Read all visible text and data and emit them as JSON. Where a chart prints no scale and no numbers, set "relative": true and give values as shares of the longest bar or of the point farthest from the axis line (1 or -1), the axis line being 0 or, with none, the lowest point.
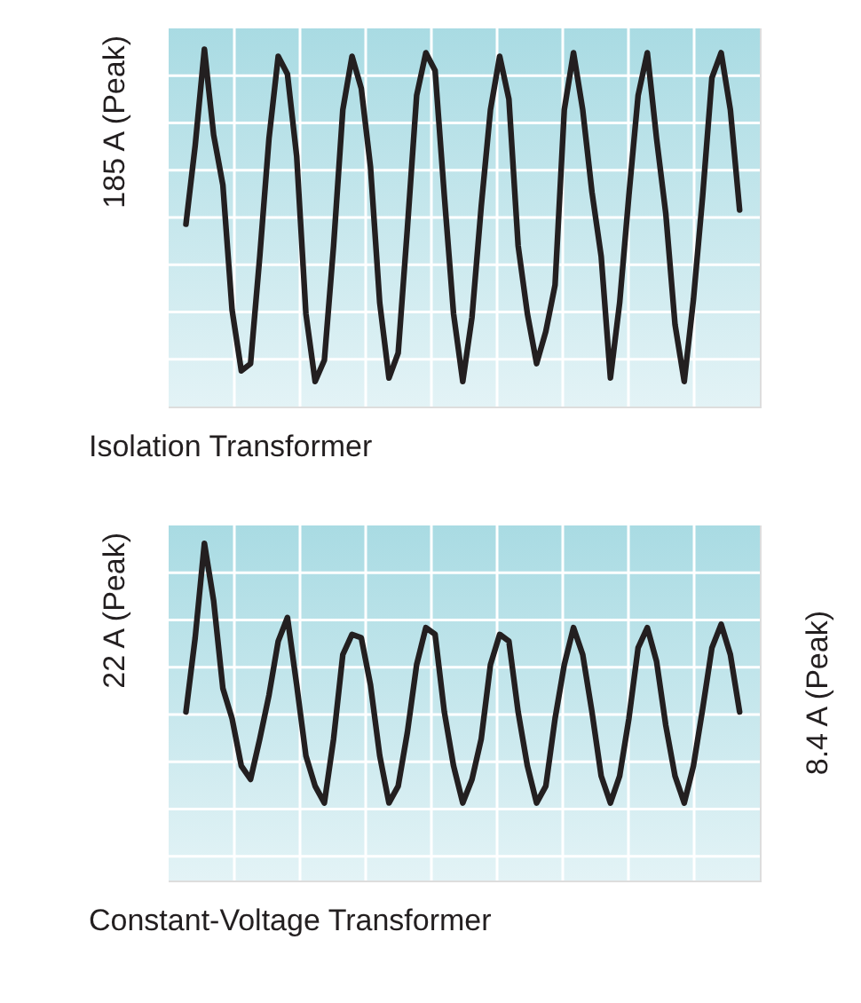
{
  "chart_data": [
    {
      "type": "line",
      "relative": true,
      "grid": true,
      "title": "Isolation Transformer",
      "categories": [
        null,
        null,
        null,
        null,
        null,
        null,
        null,
        null,
        null,
        null,
        null,
        null,
        null,
        null,
        null,
        null,
        null,
        null,
        null,
        null,
        null,
        null,
        null,
        null,
        null,
        null,
        null,
        null,
        null,
        null,
        null,
        null,
        null,
        null,
        null,
        null,
        null,
        null,
        null,
        null,
        null,
        null,
        null,
        null,
        null,
        null,
        null,
        null,
        null,
        null,
        null,
        null,
        null,
        null,
        null,
        null,
        null,
        null,
        null,
        null,
        null
      ],
      "series": [
        {
          "color": "#231f20",
          "values": [
            0.51,
            0.73,
            1.0,
            0.76,
            0.62,
            0.27,
            0.1,
            0.12,
            0.42,
            0.75,
            0.98,
            0.93,
            0.7,
            0.26,
            0.07,
            0.13,
            0.45,
            0.83,
            0.98,
            0.89,
            0.67,
            0.29,
            0.08,
            0.15,
            0.5,
            0.87,
            0.99,
            0.94,
            0.59,
            0.26,
            0.07,
            0.25,
            0.56,
            0.83,
            0.98,
            0.86,
            0.45,
            0.26,
            0.12,
            0.21,
            0.34,
            0.83,
            0.99,
            0.83,
            0.6,
            0.42,
            0.08,
            0.29,
            0.59,
            0.87,
            0.99,
            0.75,
            0.54,
            0.23,
            0.07,
            0.3,
            0.59,
            0.92,
            0.99,
            0.83,
            0.55
          ]
        }
      ],
      "annotations": [
        "185 A (Peak)"
      ]
    },
    {
      "type": "line",
      "relative": true,
      "grid": true,
      "title": "Constant-Voltage Transformer",
      "categories": [
        null,
        null,
        null,
        null,
        null,
        null,
        null,
        null,
        null,
        null,
        null,
        null,
        null,
        null,
        null,
        null,
        null,
        null,
        null,
        null,
        null,
        null,
        null,
        null,
        null,
        null,
        null,
        null,
        null,
        null,
        null,
        null,
        null,
        null,
        null,
        null,
        null,
        null,
        null,
        null,
        null,
        null,
        null,
        null,
        null,
        null,
        null,
        null,
        null,
        null,
        null,
        null,
        null,
        null,
        null,
        null,
        null,
        null,
        null,
        null,
        null
      ],
      "series": [
        {
          "color": "#231f20",
          "values": [
            0.5,
            0.72,
            1.0,
            0.83,
            0.57,
            0.48,
            0.34,
            0.3,
            0.42,
            0.55,
            0.71,
            0.78,
            0.58,
            0.37,
            0.28,
            0.23,
            0.42,
            0.67,
            0.73,
            0.72,
            0.58,
            0.37,
            0.23,
            0.28,
            0.44,
            0.64,
            0.75,
            0.73,
            0.5,
            0.34,
            0.23,
            0.3,
            0.42,
            0.64,
            0.73,
            0.71,
            0.5,
            0.34,
            0.23,
            0.28,
            0.48,
            0.64,
            0.75,
            0.67,
            0.5,
            0.31,
            0.23,
            0.31,
            0.48,
            0.69,
            0.75,
            0.65,
            0.46,
            0.31,
            0.23,
            0.34,
            0.51,
            0.69,
            0.76,
            0.67,
            0.5
          ]
        }
      ],
      "annotations": [
        "22 A (Peak)",
        "8.4 A (Peak)"
      ]
    }
  ]
}
